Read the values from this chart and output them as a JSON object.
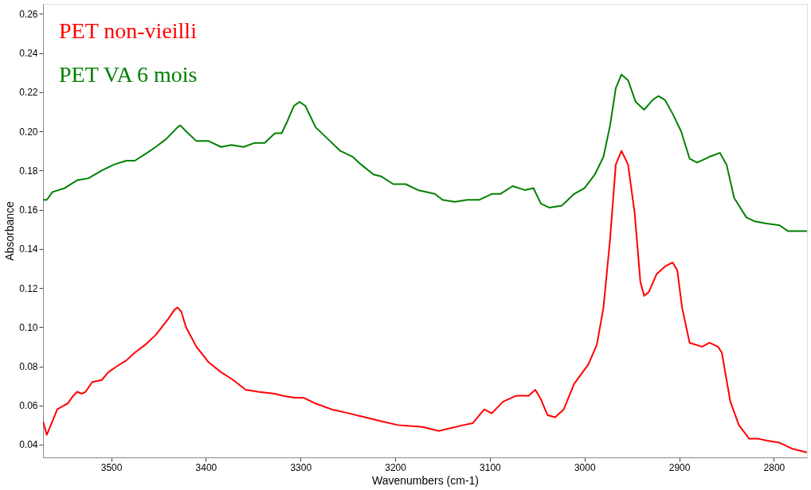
{
  "chart_data": {
    "type": "line",
    "xlabel": "Wavenumbers (cm-1)",
    "ylabel": "Absorbance",
    "xlim": [
      3572,
      2765
    ],
    "ylim": [
      0.0335,
      0.265
    ],
    "xticks": [
      3500,
      3400,
      3300,
      3200,
      3100,
      3000,
      2900,
      2800
    ],
    "yticks": [
      {
        "value": 0.04,
        "label": "0.04"
      },
      {
        "value": 0.06,
        "label": "0.06"
      },
      {
        "value": 0.08,
        "label": "0.08"
      },
      {
        "value": 0.1,
        "label": "0.10"
      },
      {
        "value": 0.12,
        "label": "0.12"
      },
      {
        "value": 0.14,
        "label": "0.14"
      },
      {
        "value": 0.16,
        "label": "0.16"
      },
      {
        "value": 0.18,
        "label": "0.18"
      },
      {
        "value": 0.2,
        "label": "0.20"
      },
      {
        "value": 0.22,
        "label": "0.22"
      },
      {
        "value": 0.24,
        "label": "0.24"
      },
      {
        "value": 0.26,
        "label": "0.26"
      }
    ],
    "grid": false,
    "legend": "top left",
    "marker": "none",
    "line_style": "solid",
    "series": [
      {
        "name": "PET non-vieilli",
        "color": "#ff0000",
        "x": [
          3572,
          3568,
          3562,
          3557,
          3550,
          3546,
          3540,
          3536,
          3531,
          3527,
          3520,
          3510,
          3503,
          3494,
          3484,
          3475,
          3464,
          3453,
          3440,
          3433,
          3430,
          3426,
          3421,
          3410,
          3397,
          3384,
          3371,
          3358,
          3345,
          3327,
          3319,
          3306,
          3297,
          3284,
          3267,
          3249,
          3232,
          3215,
          3197,
          3171,
          3154,
          3128,
          3118,
          3106,
          3098,
          3086,
          3072,
          3059,
          3052,
          3046,
          3039,
          3031,
          3022,
          3011,
          2996,
          2987,
          2980,
          2973,
          2967,
          2961,
          2954,
          2947,
          2941,
          2937,
          2932,
          2924,
          2915,
          2907,
          2902,
          2897,
          2889,
          2876,
          2868,
          2859,
          2855,
          2846,
          2837,
          2826,
          2816,
          2807,
          2794,
          2781,
          2765
        ],
        "values": [
          0.052,
          0.045,
          0.052,
          0.058,
          0.06,
          0.061,
          0.065,
          0.067,
          0.066,
          0.067,
          0.072,
          0.073,
          0.077,
          0.08,
          0.083,
          0.087,
          0.091,
          0.096,
          0.104,
          0.109,
          0.11,
          0.108,
          0.1,
          0.09,
          0.082,
          0.077,
          0.073,
          0.068,
          0.067,
          0.066,
          0.065,
          0.064,
          0.064,
          0.061,
          0.058,
          0.056,
          0.054,
          0.052,
          0.05,
          0.049,
          0.047,
          0.05,
          0.051,
          0.058,
          0.056,
          0.062,
          0.065,
          0.065,
          0.068,
          0.063,
          0.055,
          0.054,
          0.058,
          0.071,
          0.081,
          0.091,
          0.11,
          0.145,
          0.183,
          0.19,
          0.183,
          0.158,
          0.123,
          0.116,
          0.118,
          0.127,
          0.131,
          0.133,
          0.129,
          0.11,
          0.092,
          0.09,
          0.092,
          0.09,
          0.087,
          0.062,
          0.05,
          0.043,
          0.043,
          0.042,
          0.041,
          0.038,
          0.036
        ]
      },
      {
        "name": "PET VA 6 mois",
        "color": "#008000",
        "x": [
          3572,
          3568,
          3562,
          3549,
          3536,
          3524,
          3510,
          3497,
          3484,
          3475,
          3462,
          3453,
          3442,
          3430,
          3427,
          3421,
          3410,
          3397,
          3384,
          3373,
          3360,
          3349,
          3338,
          3327,
          3320,
          3314,
          3307,
          3301,
          3295,
          3284,
          3271,
          3258,
          3245,
          3236,
          3223,
          3215,
          3202,
          3189,
          3176,
          3158,
          3150,
          3137,
          3124,
          3111,
          3098,
          3089,
          3076,
          3063,
          3054,
          3046,
          3037,
          3024,
          3011,
          3000,
          2989,
          2980,
          2973,
          2967,
          2961,
          2954,
          2946,
          2937,
          2928,
          2922,
          2915,
          2907,
          2898,
          2889,
          2881,
          2868,
          2857,
          2850,
          2842,
          2829,
          2820,
          2809,
          2794,
          2785,
          2777,
          2765
        ],
        "values": [
          0.165,
          0.165,
          0.169,
          0.171,
          0.175,
          0.176,
          0.18,
          0.183,
          0.185,
          0.185,
          0.189,
          0.192,
          0.196,
          0.202,
          0.203,
          0.2,
          0.195,
          0.195,
          0.192,
          0.193,
          0.192,
          0.194,
          0.194,
          0.199,
          0.199,
          0.205,
          0.213,
          0.215,
          0.213,
          0.202,
          0.196,
          0.19,
          0.187,
          0.183,
          0.178,
          0.177,
          0.173,
          0.173,
          0.17,
          0.168,
          0.165,
          0.164,
          0.165,
          0.165,
          0.168,
          0.168,
          0.172,
          0.17,
          0.171,
          0.163,
          0.161,
          0.162,
          0.168,
          0.171,
          0.178,
          0.187,
          0.203,
          0.222,
          0.229,
          0.226,
          0.215,
          0.211,
          0.216,
          0.218,
          0.216,
          0.209,
          0.2,
          0.186,
          0.184,
          0.187,
          0.189,
          0.183,
          0.166,
          0.156,
          0.154,
          0.153,
          0.152,
          0.149,
          0.149,
          0.149
        ]
      }
    ]
  }
}
